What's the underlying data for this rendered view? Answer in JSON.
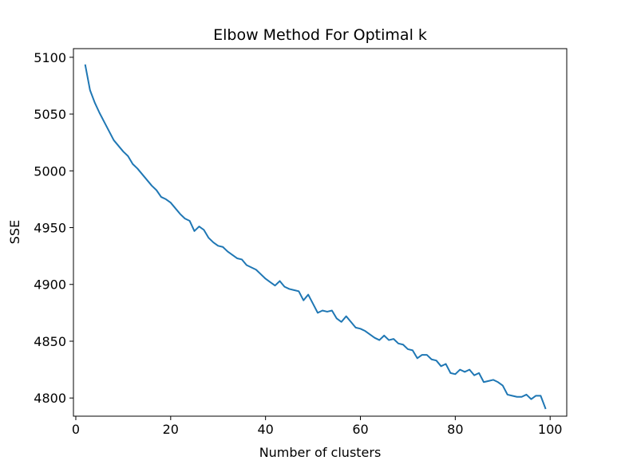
{
  "chart_data": {
    "type": "line",
    "title": "Elbow Method For Optimal k",
    "xlabel": "Number of clusters",
    "ylabel": "SSE",
    "xlim": [
      -0.5,
      103.5
    ],
    "ylim": [
      4784,
      5107.6
    ],
    "xticks": [
      0,
      20,
      40,
      60,
      80,
      100
    ],
    "yticks": [
      4800,
      4850,
      4900,
      4950,
      5000,
      5050,
      5100
    ],
    "grid": false,
    "series": [
      {
        "color": "#1f77b4",
        "x": [
          2,
          3,
          4,
          5,
          6,
          7,
          8,
          9,
          10,
          11,
          12,
          13,
          14,
          15,
          16,
          17,
          18,
          19,
          20,
          21,
          22,
          23,
          24,
          25,
          26,
          27,
          28,
          29,
          30,
          31,
          32,
          33,
          34,
          35,
          36,
          37,
          38,
          39,
          40,
          41,
          42,
          43,
          44,
          45,
          46,
          47,
          48,
          49,
          50,
          51,
          52,
          53,
          54,
          55,
          56,
          57,
          58,
          59,
          60,
          61,
          62,
          63,
          64,
          65,
          66,
          67,
          68,
          69,
          70,
          71,
          72,
          73,
          74,
          75,
          76,
          77,
          78,
          79,
          80,
          81,
          82,
          83,
          84,
          85,
          86,
          87,
          88,
          89,
          90,
          91,
          92,
          93,
          94,
          95,
          96,
          97,
          98,
          99
        ],
        "values": [
          5093,
          5071,
          5060,
          5051,
          5043,
          5035,
          5027,
          5022,
          5017,
          5013,
          5006,
          5002,
          4997,
          4992,
          4987,
          4983,
          4977,
          4975,
          4972,
          4967,
          4962,
          4958,
          4956,
          4947,
          4951,
          4948,
          4941,
          4937,
          4934,
          4933,
          4929,
          4926,
          4923,
          4922,
          4917,
          4915,
          4913,
          4909,
          4905,
          4902,
          4899,
          4903,
          4898,
          4896,
          4895,
          4894,
          4886,
          4891,
          4883,
          4875,
          4877,
          4876,
          4877,
          4870,
          4867,
          4872,
          4867,
          4862,
          4861,
          4859,
          4856,
          4853,
          4851,
          4855,
          4851,
          4852,
          4848,
          4847,
          4843,
          4842,
          4835,
          4838,
          4838,
          4834,
          4833,
          4828,
          4830,
          4822,
          4821,
          4825,
          4823,
          4825,
          4820,
          4822,
          4814,
          4815,
          4816,
          4814,
          4811,
          4803,
          4802,
          4801,
          4801,
          4803,
          4799,
          4802,
          4802,
          4791
        ]
      }
    ]
  }
}
